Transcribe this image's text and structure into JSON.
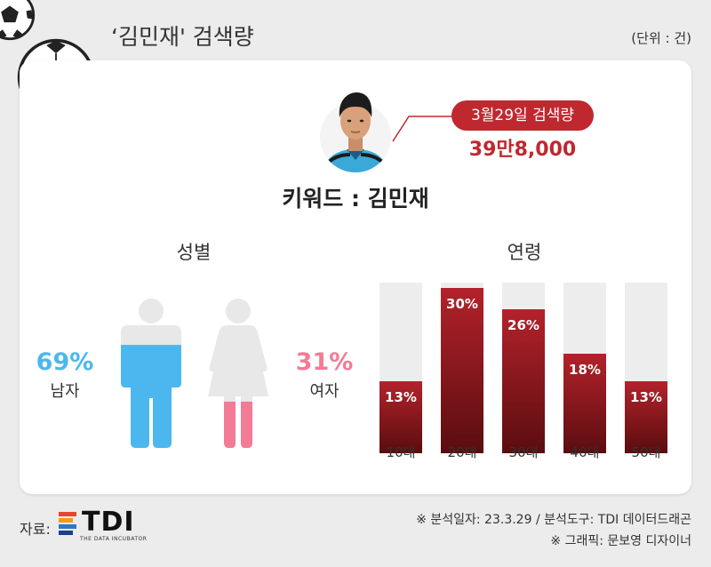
{
  "header": {
    "title": "‘김민재' 검색량",
    "unit": "(단위 : 건)"
  },
  "callout": {
    "date_label": "3월29일 검색량",
    "value": "39만8,000"
  },
  "keyword": "키워드 : 김민재",
  "colors": {
    "male": "#4cb7ee",
    "female": "#f37b96",
    "accent": "#c0282f",
    "bar_bg": "#ededed"
  },
  "chart_data": [
    {
      "type": "bar",
      "title": "성별",
      "categories": [
        "남자",
        "여자"
      ],
      "values": [
        69,
        31
      ],
      "value_labels": [
        "69%",
        "31%"
      ]
    },
    {
      "type": "bar",
      "title": "연령",
      "categories": [
        "10대",
        "20대",
        "30대",
        "40대",
        "50대"
      ],
      "values": [
        13,
        30,
        26,
        18,
        13
      ],
      "value_labels": [
        "13%",
        "30%",
        "26%",
        "18%",
        "13%"
      ],
      "ylim": [
        0,
        30
      ]
    }
  ],
  "footer": {
    "source_label": "자료:",
    "logo_text": "TDI",
    "logo_sub": "THE DATA INCUBATOR",
    "note1": "※ 분석일자: 23.3.29  / 분석도구: TDI 데이터드래곤",
    "note2": "※ 그래픽: 문보영 디자이너"
  }
}
